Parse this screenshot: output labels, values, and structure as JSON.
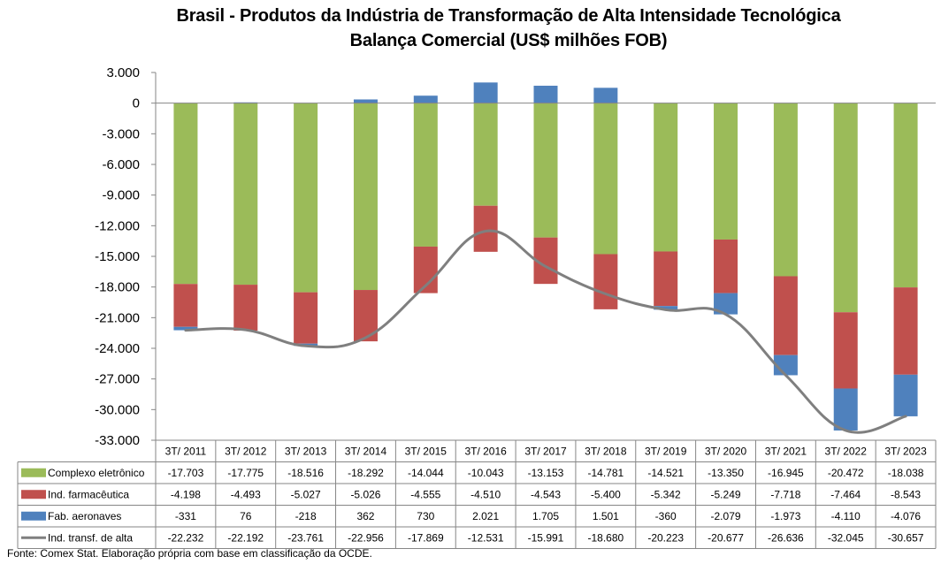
{
  "chart_data": {
    "type": "bar",
    "stacked": true,
    "title": "Brasil - Produtos da Indústria de Transformação de Alta Intensidade Tecnológica",
    "subtitle": "Balança Comercial (US$ milhões FOB)",
    "categories": [
      "3T/ 2011",
      "3T/ 2012",
      "3T/ 2013",
      "3T/ 2014",
      "3T/ 2015",
      "3T/ 2016",
      "3T/ 2017",
      "3T/ 2018",
      "3T/ 2019",
      "3T/ 2020",
      "3T/ 2021",
      "3T/ 2022",
      "3T/ 2023"
    ],
    "ylim": [
      -33000,
      3000
    ],
    "yticks": [
      3000,
      0,
      -3000,
      -6000,
      -9000,
      -12000,
      -15000,
      -18000,
      -21000,
      -24000,
      -27000,
      -30000,
      -33000
    ],
    "ytick_labels": [
      "3.000",
      "0",
      "-3.000",
      "-6.000",
      "-9.000",
      "-12.000",
      "-15.000",
      "-18.000",
      "-21.000",
      "-24.000",
      "-27.000",
      "-30.000",
      "-33.000"
    ],
    "grid": false,
    "legend": "data-table-left",
    "series": [
      {
        "name": "Complexo eletrônico",
        "kind": "bar",
        "color": "#9BBB59",
        "values": [
          -17703,
          -17775,
          -18516,
          -18292,
          -14044,
          -10043,
          -13153,
          -14781,
          -14521,
          -13350,
          -16945,
          -20472,
          -18038
        ],
        "labels": [
          "-17.703",
          "-17.775",
          "-18.516",
          "-18.292",
          "-14.044",
          "-10.043",
          "-13.153",
          "-14.781",
          "-14.521",
          "-13.350",
          "-16.945",
          "-20.472",
          "-18.038"
        ]
      },
      {
        "name": "Ind. farmacêutica",
        "kind": "bar",
        "color": "#C0504D",
        "values": [
          -4198,
          -4493,
          -5027,
          -5026,
          -4555,
          -4510,
          -4543,
          -5400,
          -5342,
          -5249,
          -7718,
          -7464,
          -8543
        ],
        "labels": [
          "-4.198",
          "-4.493",
          "-5.027",
          "-5.026",
          "-4.555",
          "-4.510",
          "-4.543",
          "-5.400",
          "-5.342",
          "-5.249",
          "-7.718",
          "-7.464",
          "-8.543"
        ]
      },
      {
        "name": "Fab. aeronaves",
        "kind": "bar",
        "color": "#4F81BD",
        "values": [
          -331,
          76,
          -218,
          362,
          730,
          2021,
          1705,
          1501,
          -360,
          -2079,
          -1973,
          -4110,
          -4076
        ],
        "labels": [
          "-331",
          "76",
          "-218",
          "362",
          "730",
          "2.021",
          "1.705",
          "1.501",
          "-360",
          "-2.079",
          "-1.973",
          "-4.110",
          "-4.076"
        ]
      },
      {
        "name": "Ind. transf. de alta",
        "kind": "line",
        "color": "#7F7F7F",
        "values": [
          -22232,
          -22192,
          -23761,
          -22956,
          -17869,
          -12531,
          -15991,
          -18680,
          -20223,
          -20677,
          -26636,
          -32045,
          -30657
        ],
        "labels": [
          "-22.232",
          "-22.192",
          "-23.761",
          "-22.956",
          "-17.869",
          "-12.531",
          "-15.991",
          "-18.680",
          "-20.223",
          "-20.677",
          "-26.636",
          "-32.045",
          "-30.657"
        ]
      }
    ],
    "source": "Fonte: Comex Stat. Elaboração própria com base em classificação da OCDE."
  }
}
